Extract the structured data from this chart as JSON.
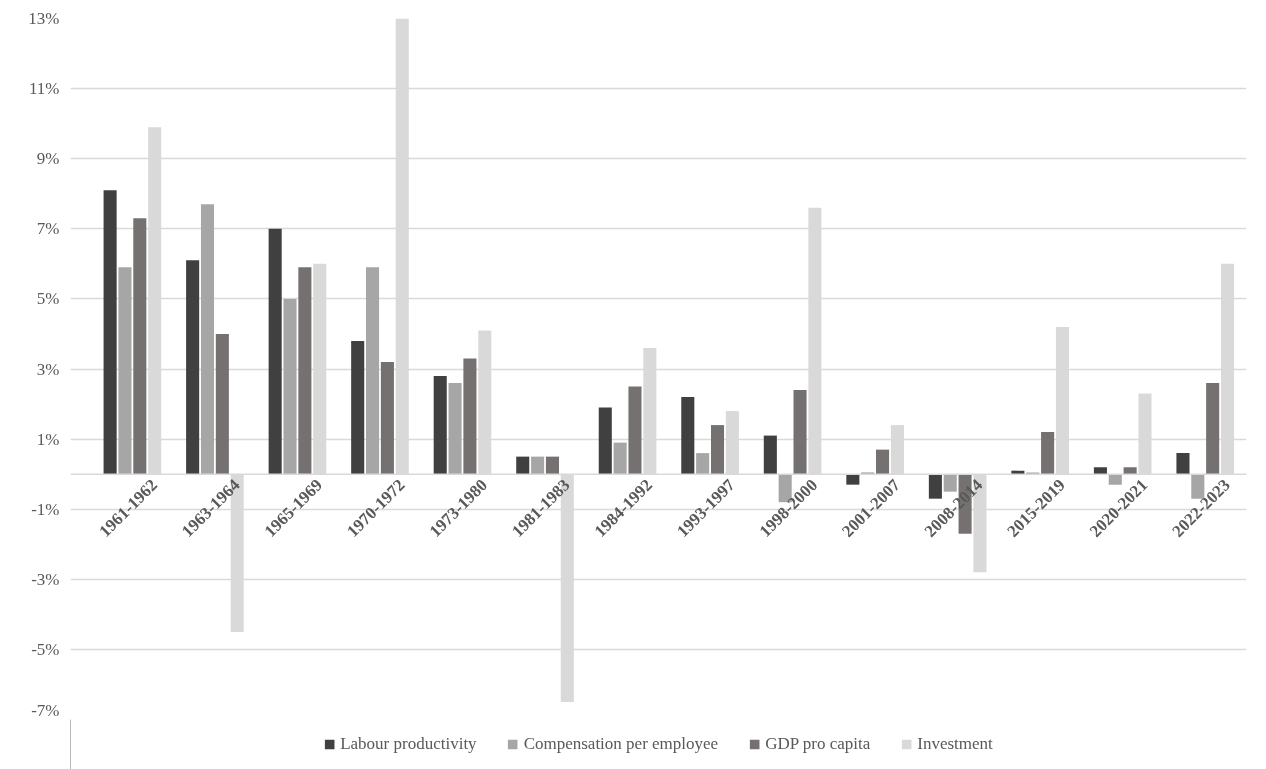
{
  "chart_data": {
    "type": "bar",
    "categories": [
      "1961-1962",
      "1963-1964",
      "1965-1969",
      "1970-1972",
      "1973-1980",
      "1981-1983",
      "1984-1992",
      "1993-1997",
      "1998-2000",
      "2001-2007",
      "2008-2014",
      "2015-2019",
      "2020-2021",
      "2022-2023"
    ],
    "series": [
      {
        "name": "Labour productivity",
        "color": "#404040",
        "values": [
          8.1,
          6.1,
          7.0,
          3.8,
          2.8,
          0.5,
          1.9,
          2.2,
          1.1,
          -0.3,
          -0.7,
          0.1,
          0.2,
          0.6
        ]
      },
      {
        "name": "Compensation per employee",
        "color": "#a6a6a6",
        "values": [
          5.9,
          7.7,
          5.0,
          5.9,
          2.6,
          0.5,
          0.9,
          0.6,
          -0.8,
          0.05,
          -0.5,
          0.05,
          -0.3,
          -0.7
        ]
      },
      {
        "name": "GDP pro capita",
        "color": "#767171",
        "values": [
          7.3,
          4.0,
          5.9,
          3.2,
          3.3,
          0.5,
          2.5,
          1.4,
          2.4,
          0.7,
          -1.7,
          1.2,
          0.2,
          2.6
        ]
      },
      {
        "name": "Investment",
        "color": "#d9d9d9",
        "values": [
          9.9,
          -4.5,
          6.0,
          13.0,
          4.1,
          -6.5,
          3.6,
          1.8,
          7.6,
          1.4,
          -2.8,
          4.2,
          2.3,
          6.0
        ]
      }
    ],
    "ylim": [
      -7,
      13
    ],
    "yticks": [
      {
        "value": -7,
        "label": "-7%"
      },
      {
        "value": -5,
        "label": "-5%"
      },
      {
        "value": -3,
        "label": "-3%"
      },
      {
        "value": -1,
        "label": "-1%"
      },
      {
        "value": 1,
        "label": "1%"
      },
      {
        "value": 3,
        "label": "3%"
      },
      {
        "value": 5,
        "label": "5%"
      },
      {
        "value": 7,
        "label": "7%"
      },
      {
        "value": 9,
        "label": "9%"
      },
      {
        "value": 11,
        "label": "11%"
      },
      {
        "value": 13,
        "label": "13%"
      }
    ],
    "grid": "y",
    "legend": "bottom"
  }
}
